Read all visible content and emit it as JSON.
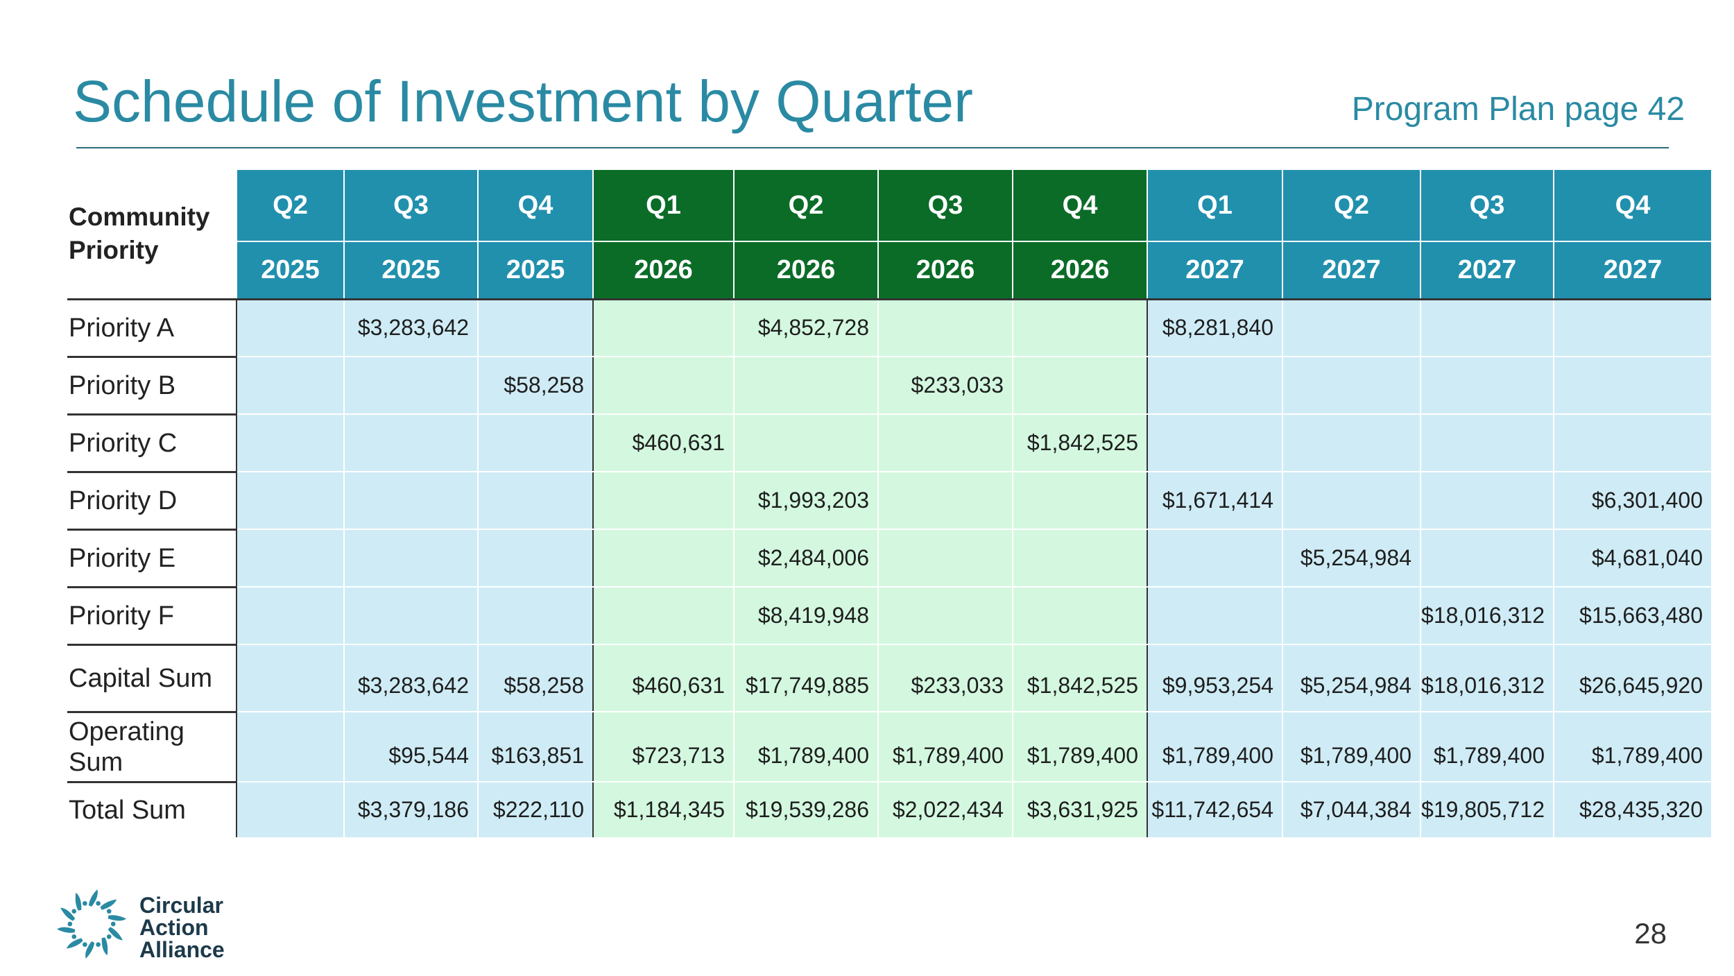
{
  "header": {
    "title": "Schedule of Investment by Quarter",
    "page_ref": "Program Plan page 42"
  },
  "table": {
    "corner_label": "Community Priority",
    "columns": [
      {
        "quarter": "Q2",
        "year": "2025",
        "group": "blue"
      },
      {
        "quarter": "Q3",
        "year": "2025",
        "group": "blue"
      },
      {
        "quarter": "Q4",
        "year": "2025",
        "group": "blue"
      },
      {
        "quarter": "Q1",
        "year": "2026",
        "group": "green"
      },
      {
        "quarter": "Q2",
        "year": "2026",
        "group": "green"
      },
      {
        "quarter": "Q3",
        "year": "2026",
        "group": "green"
      },
      {
        "quarter": "Q4",
        "year": "2026",
        "group": "green"
      },
      {
        "quarter": "Q1",
        "year": "2027",
        "group": "blue"
      },
      {
        "quarter": "Q2",
        "year": "2027",
        "group": "blue"
      },
      {
        "quarter": "Q3",
        "year": "2027",
        "group": "blue"
      },
      {
        "quarter": "Q4",
        "year": "2027",
        "group": "blue"
      }
    ],
    "rows": [
      {
        "label": "Priority A",
        "values": [
          "",
          "$3,283,642",
          "",
          "",
          "$4,852,728",
          "",
          "",
          "$8,281,840",
          "",
          "",
          ""
        ]
      },
      {
        "label": "Priority B",
        "values": [
          "",
          "",
          "$58,258",
          "",
          "",
          "$233,033",
          "",
          "",
          "",
          "",
          ""
        ]
      },
      {
        "label": "Priority C",
        "values": [
          "",
          "",
          "",
          "$460,631",
          "",
          "",
          "$1,842,525",
          "",
          "",
          "",
          ""
        ]
      },
      {
        "label": "Priority D",
        "values": [
          "",
          "",
          "",
          "",
          "$1,993,203",
          "",
          "",
          "$1,671,414",
          "",
          "",
          "$6,301,400"
        ]
      },
      {
        "label": "Priority E",
        "values": [
          "",
          "",
          "",
          "",
          "$2,484,006",
          "",
          "",
          "",
          "$5,254,984",
          "",
          "$4,681,040"
        ]
      },
      {
        "label": "Priority F",
        "values": [
          "",
          "",
          "",
          "",
          "$8,419,948",
          "",
          "",
          "",
          "",
          "$18,016,312",
          "$15,663,480"
        ]
      },
      {
        "label": "Capital Sum",
        "values": [
          "",
          "$3,283,642",
          "$58,258",
          "$460,631",
          "$17,749,885",
          "$233,033",
          "$1,842,525",
          "$9,953,254",
          "$5,254,984",
          "$18,016,312",
          "$26,645,920"
        ]
      },
      {
        "label": "Operating Sum",
        "values": [
          "",
          "$95,544",
          "$163,851",
          "$723,713",
          "$1,789,400",
          "$1,789,400",
          "$1,789,400",
          "$1,789,400",
          "$1,789,400",
          "$1,789,400",
          "$1,789,400"
        ]
      },
      {
        "label": "Total Sum",
        "values": [
          "",
          "$3,379,186",
          "$222,110",
          "$1,184,345",
          "$19,539,286",
          "$2,022,434",
          "$3,631,925",
          "$11,742,654",
          "$7,044,384",
          "$19,805,712",
          "$28,435,320"
        ]
      }
    ]
  },
  "footer": {
    "logo_icon": "circular-action-alliance-logo",
    "logo_lines": [
      "Circular",
      "Action",
      "Alliance"
    ],
    "page_number": "28"
  },
  "colors": {
    "title": "#2a8aa3",
    "header_blue": "#2190ad",
    "header_green": "#0b6c28",
    "cell_blue": "#cfecf6",
    "cell_green": "#d3f8df"
  }
}
